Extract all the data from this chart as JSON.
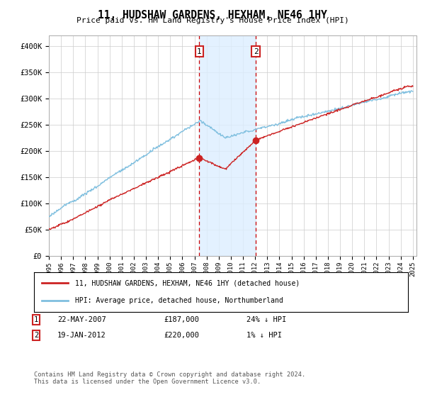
{
  "title": "11, HUDSHAW GARDENS, HEXHAM, NE46 1HY",
  "subtitle": "Price paid vs. HM Land Registry's House Price Index (HPI)",
  "ylabel_ticks": [
    "£0",
    "£50K",
    "£100K",
    "£150K",
    "£200K",
    "£250K",
    "£300K",
    "£350K",
    "£400K"
  ],
  "ylim": [
    0,
    420000
  ],
  "xlim_start": 1995.0,
  "xlim_end": 2025.3,
  "hpi_color": "#7fbfdf",
  "price_color": "#cc2222",
  "sale1_date": 2007.39,
  "sale1_price": 187000,
  "sale1_label": "1",
  "sale2_date": 2012.05,
  "sale2_price": 220000,
  "sale2_label": "2",
  "shade_color": "#ddeeff",
  "vline_color": "#cc0000",
  "legend_line1": "11, HUDSHAW GARDENS, HEXHAM, NE46 1HY (detached house)",
  "legend_line2": "HPI: Average price, detached house, Northumberland",
  "footnote": "Contains HM Land Registry data © Crown copyright and database right 2024.\nThis data is licensed under the Open Government Licence v3.0.",
  "background_color": "#ffffff",
  "grid_color": "#cccccc"
}
